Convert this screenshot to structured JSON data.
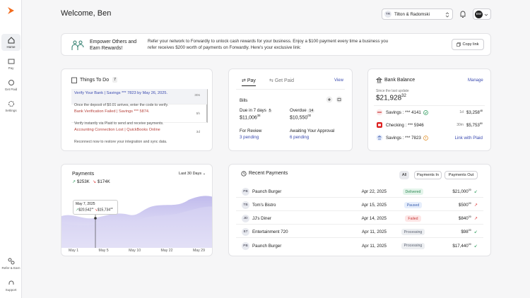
{
  "sidebar": {
    "items": [
      "Home",
      "Pay",
      "Get Paid",
      "Settings"
    ],
    "bottom": [
      "Refer & Earn",
      "Support"
    ]
  },
  "header": {
    "title": "Welcome, Ben",
    "org_initials": "TR",
    "org": "Tilton & Radomski",
    "user_initials": "BW"
  },
  "banner": {
    "title": "Empower Others and Earn Rewards!",
    "text": "Refer your network to Forwardly to unlock cash rewards for your business. Enjoy a $100 payment every time a business you refer receives $200 worth of payments on Forwardly. Here's your exclusive link:",
    "button": "Copy link"
  },
  "todo": {
    "title": "Things To Do",
    "count": "7",
    "items": [
      {
        "title": "Verify Your Bank | Savings *** 7823 by May 26, 2025.",
        "text": "Once the deposit of $0.01 arrives, enter the code to verify.",
        "time": "30s"
      },
      {
        "title": "Bank Verification Failed | Savings *** 5874.",
        "text": "Verify instantly via Plaid to send and receive payments.",
        "time": "5h"
      },
      {
        "title": "Accounting Connection Lost | QuickBooks Online",
        "text": "Reconnect now to restore your integration and sync data.",
        "time": "3d"
      }
    ]
  },
  "pay": {
    "tabs": [
      "Pay",
      "Get Paid"
    ],
    "view": "View",
    "bills": "Bills",
    "due": {
      "label": "Due in 7 days",
      "count": "5",
      "amount": "$11,006",
      "cents": "38"
    },
    "overdue": {
      "label": "Overdue",
      "count": "14",
      "amount": "$10,550",
      "cents": "00"
    },
    "review": {
      "label": "For Review",
      "value": "3 pending"
    },
    "approval": {
      "label": "Awaiting Your Approval",
      "value": "6 pending"
    }
  },
  "bank": {
    "title": "Bank Balance",
    "manage": "Manage",
    "since": "Since the last update",
    "total": "$21,928",
    "cents": "32",
    "accounts": [
      {
        "name": "Savings : *** 4141",
        "age": "1d",
        "amount": "$3,258",
        "cents": "48"
      },
      {
        "name": "Checking : *** 5946",
        "age": "30m",
        "amount": "$5,753",
        "cents": "80"
      },
      {
        "name": "Savings : *** 7823",
        "link": "Link with Plaid"
      }
    ]
  },
  "payments_chart": {
    "title": "Payments",
    "range": "Last 30 Days",
    "in": "$253K",
    "out": "$174K",
    "tooltip": {
      "date": "May 7, 2025",
      "in": "$20,542",
      "in_cents": "11",
      "out": "$15,734",
      "out_cents": "18"
    },
    "x_labels": [
      "May 1",
      "May 5",
      "May 10",
      "May 22",
      "May 29"
    ]
  },
  "recent": {
    "title": "Recent Payments",
    "filters": [
      "All",
      "Payments In",
      "Payments Out"
    ],
    "rows": [
      {
        "initials": "PB",
        "name": "Paunch Burger",
        "date": "Apr 22, 2025",
        "status": "Delivered",
        "amount": "$21,000",
        "cents": "00"
      },
      {
        "initials": "TB",
        "name": "Tom's Bistro",
        "date": "Apr 15, 2025",
        "status": "Paused",
        "amount": "$500",
        "cents": "00"
      },
      {
        "initials": "JD",
        "name": "JJ's Diner",
        "date": "Apr 14, 2025",
        "status": "Failed",
        "amount": "$840",
        "cents": "00"
      },
      {
        "initials": "E7",
        "name": "Entertainment 720",
        "date": "Apr 11, 2025",
        "status": "Processing",
        "amount": "$98",
        "cents": "00"
      },
      {
        "initials": "PB",
        "name": "Paunch Burger",
        "date": "Apr 11, 2025",
        "status": "Processing",
        "amount": "$17,440",
        "cents": "00"
      }
    ]
  }
}
